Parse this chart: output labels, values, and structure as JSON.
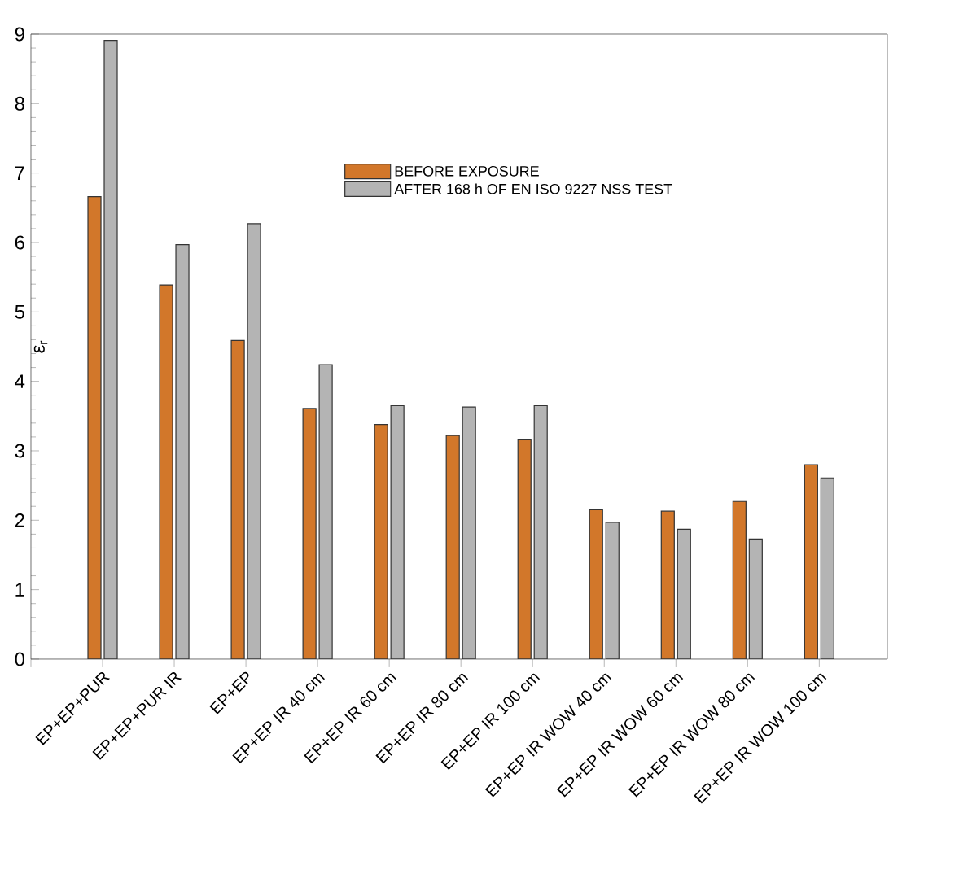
{
  "chart_data": {
    "type": "bar",
    "ylabel": "ε$_{r}$",
    "categories": [
      "EP+EP+PUR",
      "EP+EP+PUR IR",
      "EP+EP",
      "EP+EP IR 40 cm",
      "EP+EP IR 60 cm",
      "EP+EP IR 80 cm",
      "EP+EP IR 100 cm",
      "EP+EP IR WOW 40 cm",
      "EP+EP IR WOW 60 cm",
      "EP+EP IR WOW 80 cm",
      "EP+EP IR WOW 100 cm"
    ],
    "series": [
      {
        "name": "BEFORE EXPOSURE",
        "color": "#d2772a",
        "values": [
          6.66,
          5.39,
          4.59,
          3.61,
          3.38,
          3.22,
          3.16,
          2.15,
          2.13,
          2.27,
          2.8
        ]
      },
      {
        "name": "AFTER 168 h OF EN ISO 9227 NSS TEST",
        "color": "#b4b4b4",
        "values": [
          8.91,
          5.97,
          6.27,
          4.24,
          3.65,
          3.63,
          3.65,
          1.97,
          1.87,
          1.73,
          2.61
        ]
      }
    ],
    "ylim": [
      0,
      9
    ],
    "yticks": [
      0,
      1,
      2,
      3,
      4,
      5,
      6,
      7,
      8,
      9
    ],
    "grid": false,
    "legend": "top"
  }
}
